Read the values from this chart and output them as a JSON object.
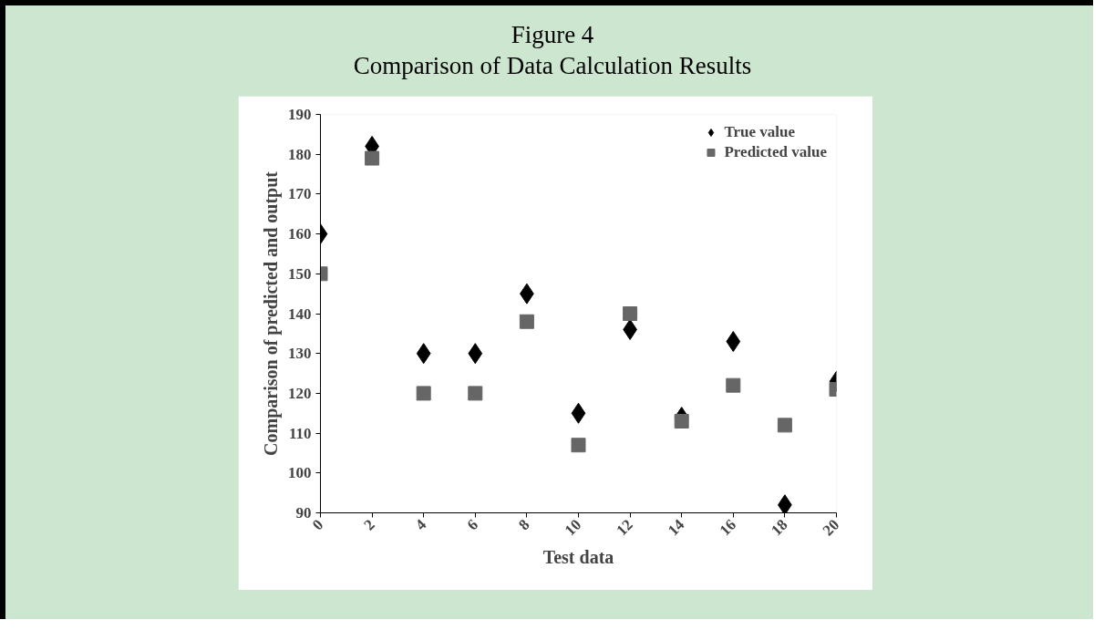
{
  "chart_data": {
    "type": "scatter",
    "title": "Figure 4",
    "subtitle": "Comparison of Data Calculation Results",
    "xlabel": "Test data",
    "ylabel": "Comparison of predicted and output",
    "x": [
      0,
      2,
      4,
      6,
      8,
      10,
      12,
      14,
      16,
      18,
      20
    ],
    "series": [
      {
        "name": "True value",
        "color": "#000000",
        "marker": "diamond",
        "values": [
          160,
          182,
          130,
          130,
          145,
          115,
          136,
          114,
          133,
          92,
          123
        ]
      },
      {
        "name": "Predicted value",
        "color": "#666666",
        "marker": "square",
        "values": [
          150,
          179,
          120,
          120,
          138,
          107,
          140,
          113,
          122,
          112,
          121
        ]
      }
    ],
    "xlim": [
      0,
      20
    ],
    "xticks": [
      0,
      2,
      4,
      6,
      8,
      10,
      12,
      14,
      16,
      18,
      20
    ],
    "ylim": [
      90,
      190
    ],
    "yticks": [
      90,
      100,
      110,
      120,
      130,
      140,
      150,
      160,
      170,
      180,
      190
    ],
    "grid": false,
    "legend": "top right"
  }
}
